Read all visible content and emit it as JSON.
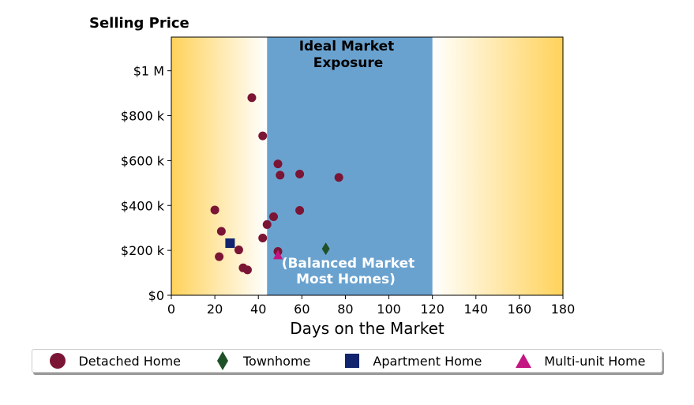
{
  "chart_data": {
    "type": "scatter",
    "title": "Selling Price",
    "xlabel": "Days on the Market",
    "ylabel": "",
    "xlim": [
      0,
      180
    ],
    "ylim": [
      0,
      1150000
    ],
    "x_ticks": [
      0,
      20,
      40,
      60,
      80,
      100,
      120,
      140,
      160,
      180
    ],
    "x_tick_labels": [
      "0",
      "20",
      "40",
      "60",
      "80",
      "100",
      "120",
      "140",
      "160",
      "180"
    ],
    "y_ticks": [
      0,
      200000,
      400000,
      600000,
      800000,
      1000000
    ],
    "y_tick_labels": [
      "$0",
      "$200 k",
      "$400 k",
      "$600 k",
      "$800 k",
      "$1 M"
    ],
    "band": {
      "x_start": 44,
      "x_end": 120,
      "color": "#6aa2cf",
      "label_top_line1": "Ideal Market",
      "label_top_line2": "Exposure",
      "label_bottom_line1": "(Balanced Market",
      "label_bottom_line2": "Most Homes)"
    },
    "background_gradient": {
      "edge": "#ffd25a",
      "center": "#ffffff"
    },
    "grid": false,
    "legend_position": "bottom",
    "series": [
      {
        "name": "Detached Home",
        "marker": "circle",
        "color": "#7b1535",
        "points": [
          [
            37,
            880000
          ],
          [
            42,
            710000
          ],
          [
            49,
            585000
          ],
          [
            50,
            535000
          ],
          [
            59,
            540000
          ],
          [
            77,
            525000
          ],
          [
            20,
            380000
          ],
          [
            59,
            378000
          ],
          [
            47,
            350000
          ],
          [
            44,
            315000
          ],
          [
            23,
            285000
          ],
          [
            42,
            255000
          ],
          [
            31,
            202000
          ],
          [
            49,
            195000
          ],
          [
            22,
            172000
          ],
          [
            33,
            122000
          ],
          [
            35,
            113000
          ]
        ]
      },
      {
        "name": "Townhome",
        "marker": "diamond",
        "color": "#1f5128",
        "points": [
          [
            71,
            207000
          ]
        ]
      },
      {
        "name": "Apartment Home",
        "marker": "square",
        "color": "#13246e",
        "points": [
          [
            27,
            232000
          ]
        ]
      },
      {
        "name": "Multi-unit Home",
        "marker": "triangle",
        "color": "#c41683",
        "points": [
          [
            49,
            178000
          ]
        ]
      }
    ]
  }
}
